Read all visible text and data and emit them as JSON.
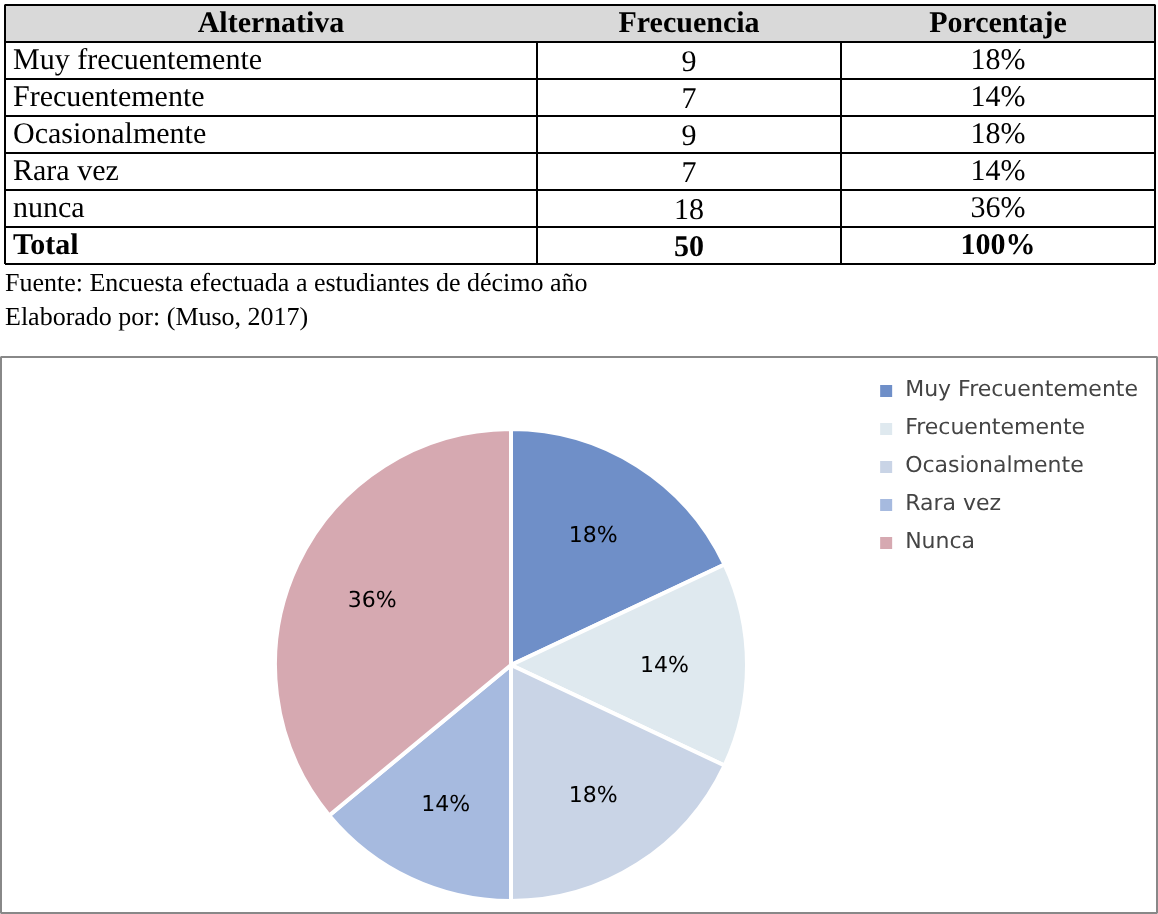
{
  "chart_data": [
    {
      "type": "other",
      "categories": [
        "Alternativa",
        "Frecuencia",
        "Porcentaje"
      ],
      "y_categories": [
        "Muy frecuentemente",
        "Frecuentemente",
        "Ocasionalmente",
        "Rara vez",
        "nunca",
        "Total"
      ],
      "cell_labels": [
        [
          "9",
          "18%"
        ],
        [
          "7",
          "14%"
        ],
        [
          "9",
          "18%"
        ],
        [
          "7",
          "14%"
        ],
        [
          "18",
          "36%"
        ],
        [
          "50",
          "100%"
        ]
      ],
      "annotations": [
        "Fuente: Encuesta efectuada a estudiantes de décimo año",
        "Elaborado por: (Muso, 2017)"
      ]
    },
    {
      "type": "pie",
      "categories": [
        "Muy Frecuentemente",
        "Frecuentemente",
        "Ocasionalmente",
        "Rara vez",
        "Nunca"
      ],
      "values": [
        18,
        14,
        18,
        14,
        36
      ],
      "colors": [
        "#6f8fc8",
        "#dfe9ef",
        "#c9d4e6",
        "#a6badf",
        "#d6a9b1"
      ],
      "value_labels": [
        "18%",
        "14%",
        "18%",
        "14%",
        "36%"
      ],
      "legend": "right"
    }
  ]
}
